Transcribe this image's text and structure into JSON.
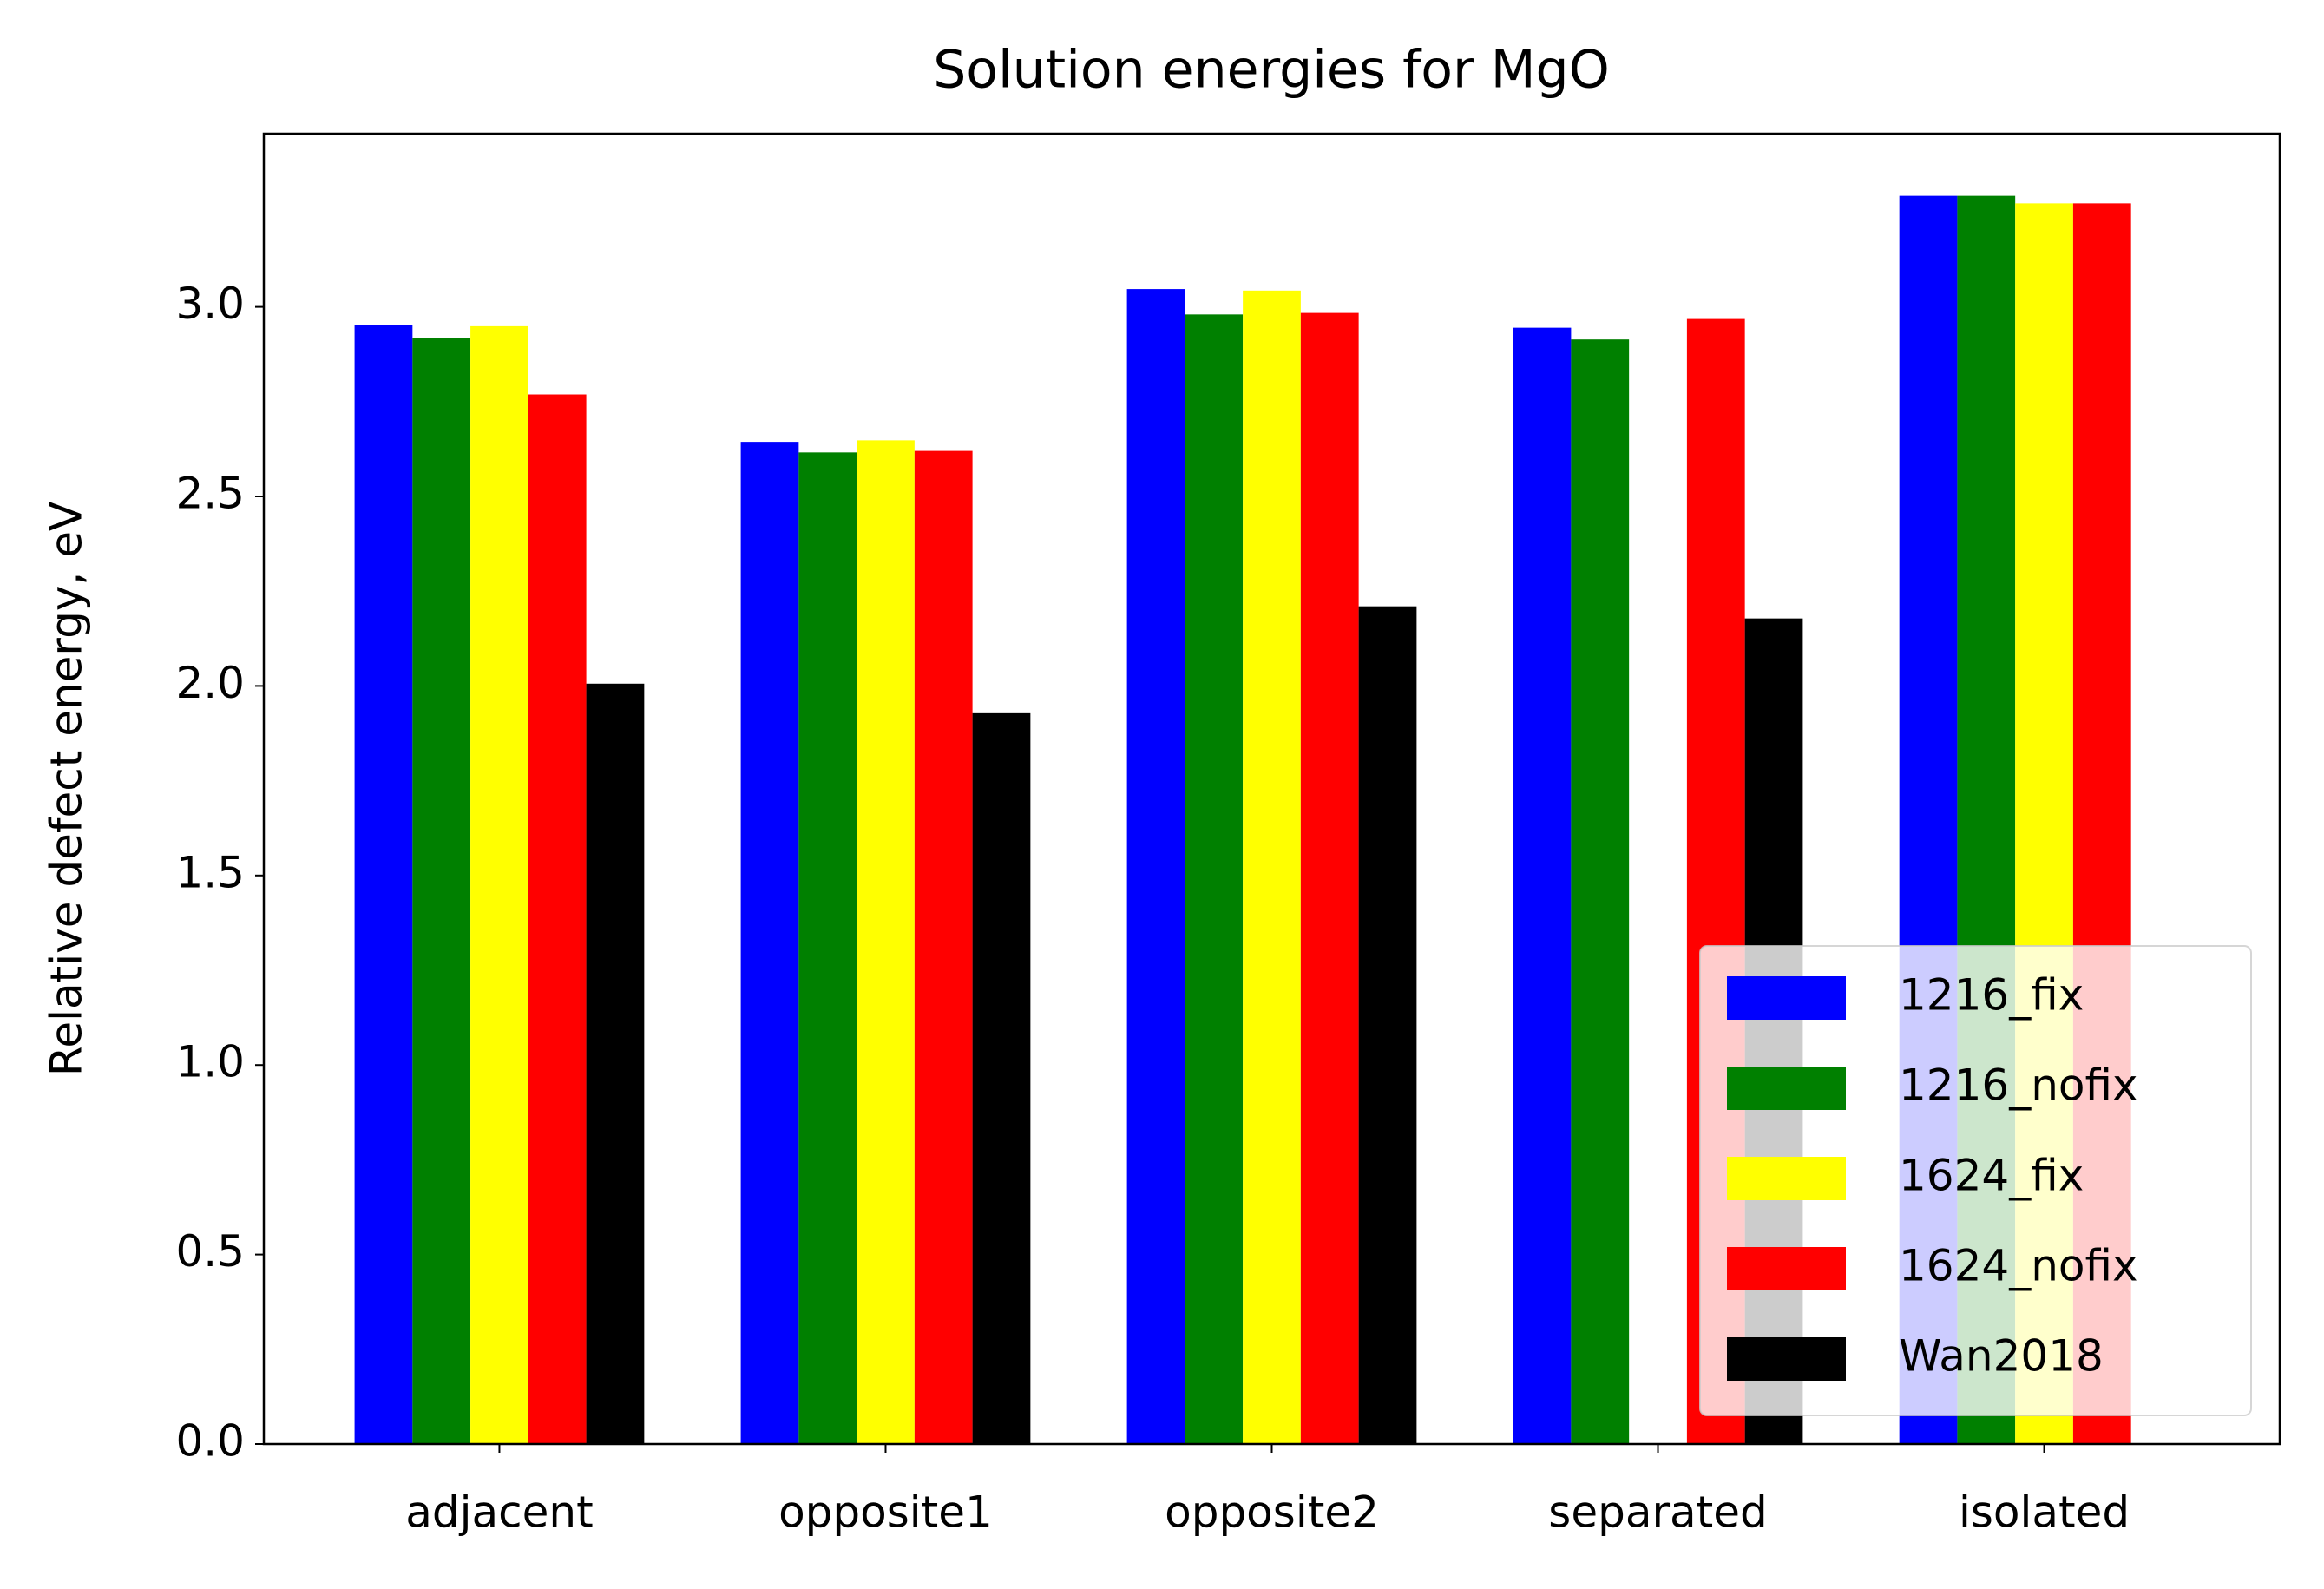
{
  "chart_data": {
    "type": "bar",
    "title": "Solution energies for MgO",
    "y_label": "Relative defect energy, eV",
    "categories": [
      "adjacent",
      "opposite1",
      "opposite2",
      "separated",
      "isolated"
    ],
    "series": [
      {
        "name": "1216_fix",
        "color": "#0000ff",
        "values": [
          2.953,
          2.644,
          3.047,
          2.945,
          3.293
        ]
      },
      {
        "name": "1216_nofix",
        "color": "#008000",
        "values": [
          2.918,
          2.616,
          2.98,
          2.914,
          3.293
        ]
      },
      {
        "name": "1624_fix",
        "color": "#ffff00",
        "values": [
          2.949,
          2.648,
          3.043,
          null,
          3.273
        ]
      },
      {
        "name": "1624_nofix",
        "color": "#ff0000",
        "values": [
          2.769,
          2.62,
          2.984,
          2.968,
          3.273
        ]
      },
      {
        "name": "Wan2018",
        "color": "#000000",
        "values": [
          2.006,
          1.928,
          2.21,
          2.178,
          null
        ]
      }
    ],
    "ylim": [
      0,
      3.457
    ],
    "yticks": [
      {
        "value": 0,
        "label": "0.0"
      },
      0.5,
      {
        "value": 1,
        "label": "1.0"
      },
      1.5,
      {
        "value": 2,
        "label": "2.0"
      },
      2.5,
      {
        "value": 3,
        "label": "3.0"
      }
    ],
    "grid": false,
    "legend": "lower right"
  }
}
